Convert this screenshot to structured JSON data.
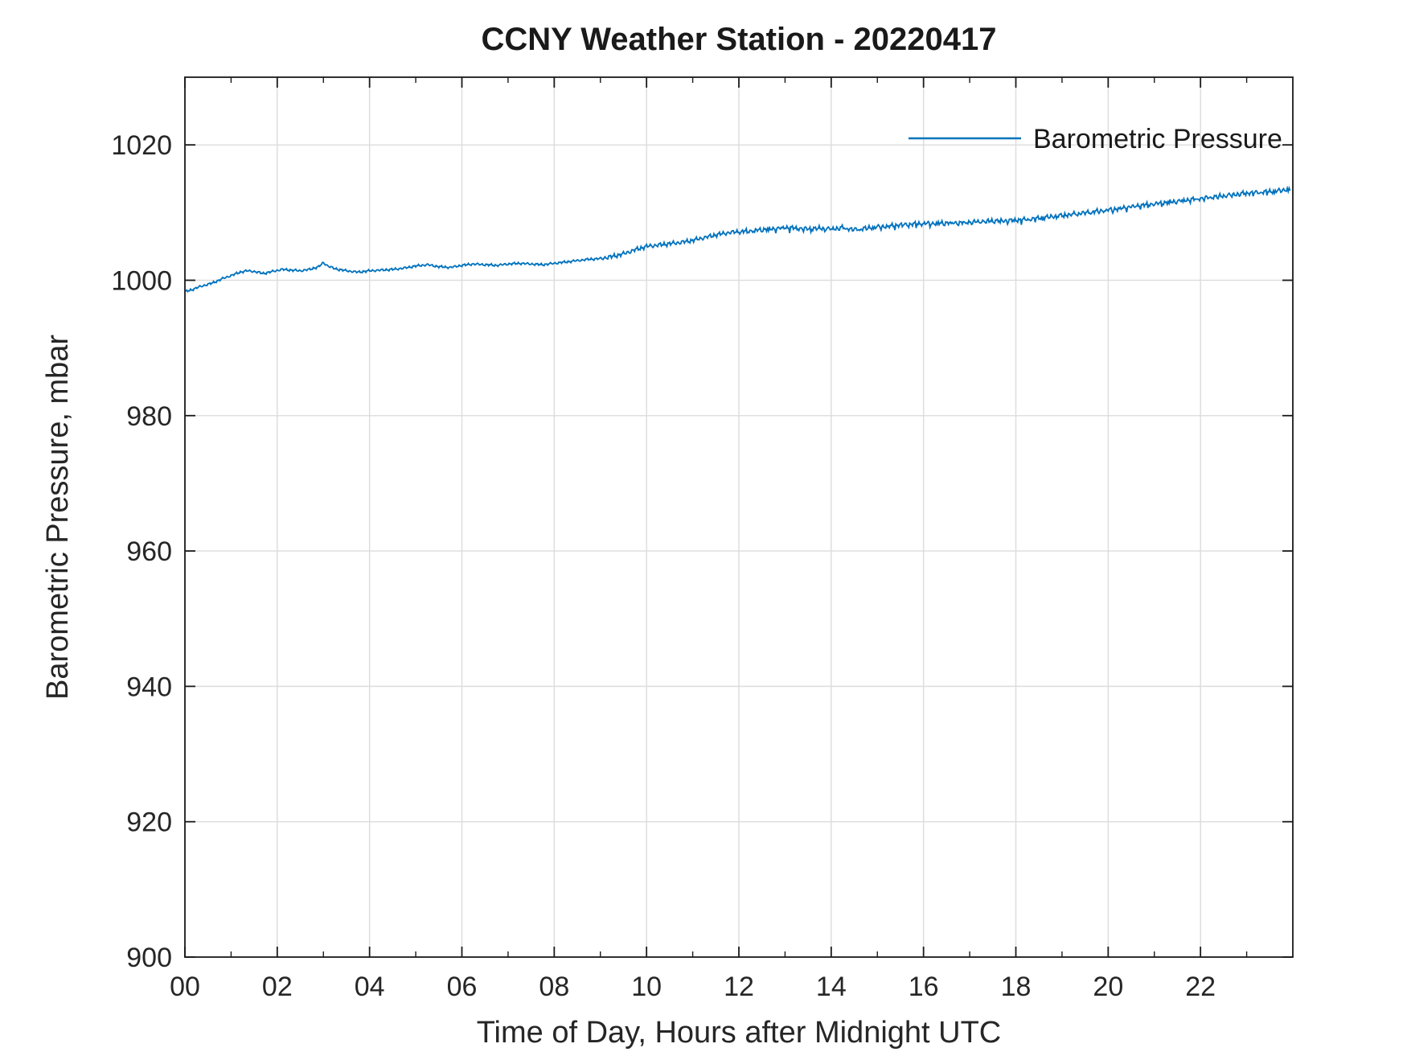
{
  "figure": {
    "background": "#ffffff"
  },
  "chart_data": {
    "type": "line",
    "title": "CCNY Weather Station - 20220417",
    "xlabel": "Time of Day, Hours after Midnight UTC",
    "ylabel": "Barometric Pressure, mbar",
    "xlim": [
      0,
      24
    ],
    "ylim": [
      900,
      1030
    ],
    "grid": true,
    "x_tick_values": [
      0,
      2,
      4,
      6,
      8,
      10,
      12,
      14,
      16,
      18,
      20,
      22
    ],
    "x_tick_labels": [
      "00",
      "02",
      "04",
      "06",
      "08",
      "10",
      "12",
      "14",
      "16",
      "18",
      "20",
      "22"
    ],
    "x_minor_tick_step": 1,
    "y_tick_values": [
      900,
      920,
      940,
      960,
      980,
      1000,
      1020
    ],
    "y_tick_labels": [
      "900",
      "920",
      "940",
      "960",
      "980",
      "1000",
      "1020"
    ],
    "legend": {
      "position": "top-right",
      "label": "Barometric Pressure"
    },
    "colors": {
      "line": "#0072BD",
      "grid": "#dcdcdc",
      "axis": "#1a1a1a",
      "text": "#262626"
    },
    "series": [
      {
        "name": "Barometric Pressure",
        "color": "#0072BD",
        "points": [
          [
            0.0,
            998.3
          ],
          [
            0.15,
            998.6
          ],
          [
            0.3,
            999.0
          ],
          [
            0.45,
            999.3
          ],
          [
            0.6,
            999.6
          ],
          [
            0.8,
            1000.2
          ],
          [
            1.0,
            1000.7
          ],
          [
            1.2,
            1001.2
          ],
          [
            1.35,
            1001.4
          ],
          [
            1.5,
            1001.3
          ],
          [
            1.7,
            1001.0
          ],
          [
            1.9,
            1001.3
          ],
          [
            2.1,
            1001.6
          ],
          [
            2.3,
            1001.5
          ],
          [
            2.5,
            1001.4
          ],
          [
            2.7,
            1001.6
          ],
          [
            2.9,
            1002.0
          ],
          [
            3.0,
            1002.6
          ],
          [
            3.1,
            1002.1
          ],
          [
            3.25,
            1001.7
          ],
          [
            3.5,
            1001.4
          ],
          [
            3.75,
            1001.2
          ],
          [
            4.0,
            1001.4
          ],
          [
            4.25,
            1001.5
          ],
          [
            4.5,
            1001.6
          ],
          [
            4.75,
            1001.8
          ],
          [
            5.0,
            1002.1
          ],
          [
            5.25,
            1002.3
          ],
          [
            5.5,
            1002.0
          ],
          [
            5.75,
            1001.9
          ],
          [
            6.0,
            1002.2
          ],
          [
            6.25,
            1002.4
          ],
          [
            6.5,
            1002.3
          ],
          [
            6.75,
            1002.2
          ],
          [
            7.0,
            1002.4
          ],
          [
            7.25,
            1002.5
          ],
          [
            7.5,
            1002.4
          ],
          [
            7.75,
            1002.3
          ],
          [
            8.0,
            1002.5
          ],
          [
            8.25,
            1002.7
          ],
          [
            8.5,
            1002.9
          ],
          [
            8.75,
            1003.1
          ],
          [
            9.0,
            1003.2
          ],
          [
            9.25,
            1003.5
          ],
          [
            9.5,
            1003.9
          ],
          [
            9.75,
            1004.5
          ],
          [
            10.0,
            1005.0
          ],
          [
            10.25,
            1005.2
          ],
          [
            10.5,
            1005.4
          ],
          [
            10.75,
            1005.6
          ],
          [
            11.0,
            1005.9
          ],
          [
            11.25,
            1006.3
          ],
          [
            11.5,
            1006.7
          ],
          [
            11.75,
            1007.0
          ],
          [
            12.0,
            1007.2
          ],
          [
            12.25,
            1007.3
          ],
          [
            12.5,
            1007.5
          ],
          [
            12.75,
            1007.6
          ],
          [
            13.0,
            1007.8
          ],
          [
            13.25,
            1007.7
          ],
          [
            13.5,
            1007.6
          ],
          [
            13.75,
            1007.7
          ],
          [
            14.0,
            1007.6
          ],
          [
            14.25,
            1007.8
          ],
          [
            14.5,
            1007.5
          ],
          [
            14.75,
            1007.7
          ],
          [
            15.0,
            1007.9
          ],
          [
            15.25,
            1008.0
          ],
          [
            15.5,
            1008.2
          ],
          [
            15.75,
            1008.3
          ],
          [
            16.0,
            1008.4
          ],
          [
            16.25,
            1008.4
          ],
          [
            16.5,
            1008.5
          ],
          [
            16.75,
            1008.5
          ],
          [
            17.0,
            1008.6
          ],
          [
            17.25,
            1008.7
          ],
          [
            17.5,
            1008.8
          ],
          [
            17.75,
            1008.8
          ],
          [
            18.0,
            1008.9
          ],
          [
            18.25,
            1009.0
          ],
          [
            18.5,
            1009.2
          ],
          [
            18.75,
            1009.4
          ],
          [
            19.0,
            1009.6
          ],
          [
            19.25,
            1009.8
          ],
          [
            19.5,
            1010.0
          ],
          [
            19.75,
            1010.2
          ],
          [
            20.0,
            1010.4
          ],
          [
            20.25,
            1010.6
          ],
          [
            20.5,
            1010.9
          ],
          [
            20.75,
            1011.1
          ],
          [
            21.0,
            1011.3
          ],
          [
            21.25,
            1011.5
          ],
          [
            21.5,
            1011.7
          ],
          [
            21.75,
            1011.9
          ],
          [
            22.0,
            1012.1
          ],
          [
            22.25,
            1012.3
          ],
          [
            22.5,
            1012.5
          ],
          [
            22.75,
            1012.7
          ],
          [
            23.0,
            1012.9
          ],
          [
            23.25,
            1013.0
          ],
          [
            23.5,
            1013.1
          ],
          [
            23.75,
            1013.3
          ],
          [
            23.95,
            1013.5
          ]
        ]
      }
    ]
  }
}
